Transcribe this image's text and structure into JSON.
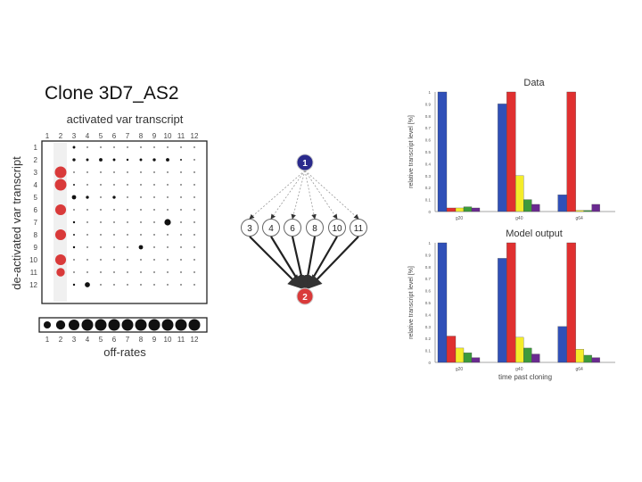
{
  "title": "Clone 3D7_AS2",
  "matrix": {
    "top_label": "activated var transcript",
    "left_label": "de-activated var transcript",
    "bottom_label": "off-rates",
    "ticks": [
      "1",
      "2",
      "3",
      "4",
      "5",
      "6",
      "7",
      "8",
      "9",
      "10",
      "11",
      "12"
    ]
  },
  "network": {
    "top_node": "1",
    "middle_nodes": [
      "3",
      "4",
      "6",
      "8",
      "10",
      "11"
    ],
    "bottom_node": "2",
    "colors": {
      "top": "#2a2a8c",
      "bottom": "#d93a3a"
    }
  },
  "chart_data": {
    "type": "matrix-dotplot",
    "rows": [
      "1",
      "2",
      "3",
      "4",
      "5",
      "6",
      "7",
      "8",
      "9",
      "10",
      "11",
      "12"
    ],
    "columns": [
      "1",
      "2",
      "3",
      "4",
      "5",
      "6",
      "7",
      "8",
      "9",
      "10",
      "11",
      "12"
    ],
    "values": [
      [
        0,
        0,
        0.12,
        0.06,
        0.06,
        0.06,
        0.06,
        0.06,
        0.06,
        0.06,
        0.06,
        0.06
      ],
      [
        0,
        0,
        0.14,
        0.12,
        0.16,
        0.12,
        0.1,
        0.12,
        0.14,
        0.16,
        0.08,
        0.06
      ],
      [
        0,
        1,
        0.06,
        0.06,
        0.06,
        0.06,
        0.06,
        0.06,
        0.06,
        0.06,
        0.06,
        0.06
      ],
      [
        0,
        1,
        0.08,
        0.06,
        0.06,
        0.06,
        0.06,
        0.06,
        0.06,
        0.06,
        0.06,
        0.06
      ],
      [
        0,
        0,
        0.2,
        0.14,
        0.06,
        0.14,
        0.06,
        0.06,
        0.06,
        0.06,
        0.06,
        0.06
      ],
      [
        0,
        0.9,
        0.06,
        0.06,
        0.06,
        0.06,
        0.06,
        0.06,
        0.06,
        0.06,
        0.06,
        0.06
      ],
      [
        0,
        0,
        0.1,
        0.06,
        0.06,
        0.06,
        0.06,
        0.06,
        0.06,
        0.3,
        0.06,
        0.06
      ],
      [
        0,
        0.9,
        0.08,
        0.06,
        0.06,
        0.06,
        0.06,
        0.06,
        0.06,
        0.06,
        0.06,
        0.06
      ],
      [
        0,
        0,
        0.1,
        0.06,
        0.06,
        0.06,
        0.06,
        0.2,
        0.06,
        0.06,
        0.06,
        0.06
      ],
      [
        0,
        0.9,
        0.06,
        0.06,
        0.06,
        0.06,
        0.06,
        0.06,
        0.06,
        0.06,
        0.06,
        0.06
      ],
      [
        0,
        0.6,
        0.06,
        0.06,
        0.06,
        0.06,
        0.06,
        0.06,
        0.06,
        0.06,
        0.06,
        0.06
      ],
      [
        0,
        0,
        0.1,
        0.24,
        0.06,
        0.06,
        0.06,
        0.06,
        0.06,
        0.06,
        0.06,
        0.06
      ]
    ],
    "highlight_column": "2",
    "off_rates": {
      "categories": [
        "1",
        "2",
        "3",
        "4",
        "5",
        "6",
        "7",
        "8",
        "9",
        "10",
        "11",
        "12"
      ],
      "values": [
        0.45,
        0.7,
        0.9,
        1,
        1,
        1,
        1,
        1,
        1,
        1,
        1,
        1
      ]
    }
  },
  "bar_charts": [
    {
      "title": "Data",
      "ylabel": "relative transcript level [%]",
      "ylim": [
        0,
        1
      ],
      "yticks": [
        "1",
        "0.9",
        "0.8",
        "0.7",
        "0.6",
        "0.5",
        "0.4",
        "0.3",
        "0.2",
        "0.1",
        "0"
      ],
      "groups": [
        "g20",
        "g40",
        "g64"
      ],
      "series_colors": [
        "#3050b8",
        "#e03030",
        "#f4ec2a",
        "#3c9a3c",
        "#6a2a90"
      ],
      "values": [
        [
          1,
          0.03,
          0.03,
          0.04,
          0.03
        ],
        [
          0.9,
          1,
          0.3,
          0.1,
          0.06
        ],
        [
          0.14,
          1,
          0.01,
          0.01,
          0.06
        ]
      ]
    },
    {
      "title": "Model output",
      "ylabel": "relative transcript level [%]",
      "xlabel": "time past cloning",
      "ylim": [
        0,
        1
      ],
      "yticks": [
        "1",
        "0.9",
        "0.8",
        "0.7",
        "0.6",
        "0.5",
        "0.4",
        "0.3",
        "0.2",
        "0.1",
        "0"
      ],
      "groups": [
        "g20",
        "g40",
        "g64"
      ],
      "series_colors": [
        "#3050b8",
        "#e03030",
        "#f4ec2a",
        "#3c9a3c",
        "#6a2a90"
      ],
      "values": [
        [
          1,
          0.22,
          0.12,
          0.08,
          0.04
        ],
        [
          0.87,
          1,
          0.21,
          0.12,
          0.07
        ],
        [
          0.3,
          1,
          0.11,
          0.06,
          0.04
        ]
      ]
    }
  ]
}
